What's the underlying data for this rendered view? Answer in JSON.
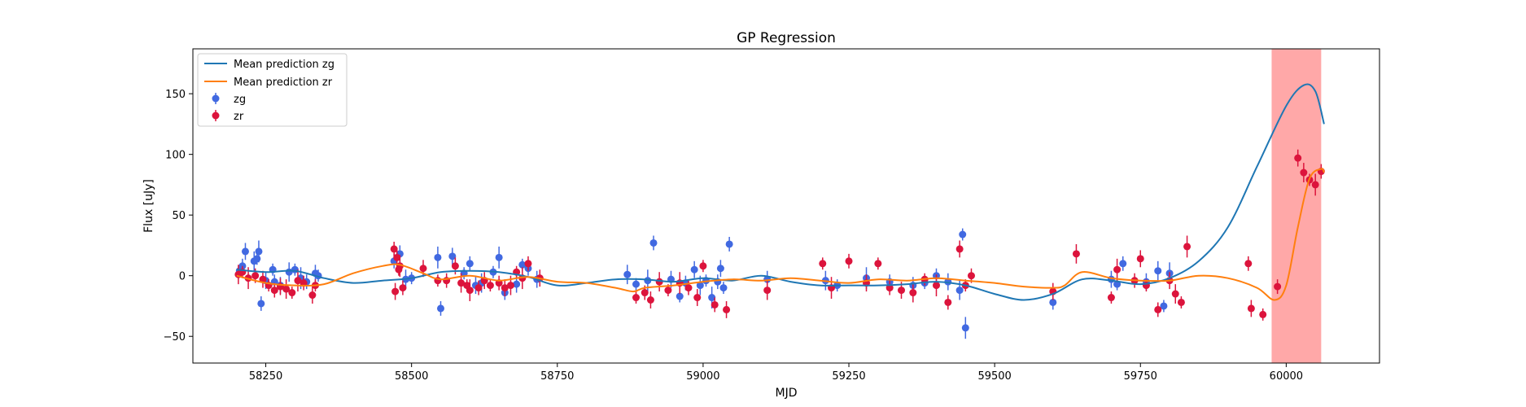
{
  "chart_data": {
    "type": "scatter",
    "title": "GP Regression",
    "xlabel": "MJD",
    "ylabel": "Flux [uJy]",
    "xlim": [
      58125,
      60160
    ],
    "ylim": [
      -72,
      187
    ],
    "x_ticks": [
      58250,
      58500,
      58750,
      59000,
      59250,
      59500,
      59750,
      60000
    ],
    "y_ticks": [
      -50,
      0,
      50,
      100,
      150
    ],
    "grid": false,
    "legend_position": "top-left",
    "shaded_region": {
      "x_start": 59975,
      "x_end": 60060,
      "color": "#ff9e9e"
    },
    "lines": [
      {
        "name": "Mean prediction zg",
        "color": "#1f77b4",
        "x": [
          58200,
          58250,
          58300,
          58350,
          58400,
          58450,
          58500,
          58550,
          58600,
          58650,
          58700,
          58750,
          58800,
          58850,
          58900,
          58950,
          59000,
          59050,
          59100,
          59150,
          59200,
          59250,
          59300,
          59350,
          59400,
          59450,
          59500,
          59550,
          59600,
          59650,
          59700,
          59750,
          59800,
          59850,
          59900,
          59950,
          60000,
          60030,
          60050,
          60065
        ],
        "y": [
          5,
          3,
          4,
          -2,
          -6,
          -4,
          -2,
          3,
          4,
          3,
          -1,
          -8,
          -6,
          -3,
          -3,
          -5,
          -2,
          -4,
          0,
          -5,
          -8,
          -8,
          -8,
          -7,
          -5,
          -8,
          -15,
          -20,
          -15,
          -3,
          -4,
          -7,
          -2,
          12,
          40,
          90,
          140,
          157,
          152,
          125
        ]
      },
      {
        "name": "Mean prediction zr",
        "color": "#ff7f0e",
        "x": [
          58200,
          58250,
          58300,
          58350,
          58400,
          58450,
          58480,
          58520,
          58550,
          58600,
          58650,
          58700,
          58750,
          58800,
          58850,
          58880,
          58900,
          58950,
          59000,
          59050,
          59100,
          59150,
          59200,
          59250,
          59300,
          59350,
          59400,
          59450,
          59500,
          59550,
          59600,
          59620,
          59650,
          59700,
          59750,
          59800,
          59850,
          59900,
          59950,
          59980,
          60000,
          60020,
          60040,
          60060,
          60065
        ],
        "y": [
          0,
          -6,
          -8,
          -7,
          2,
          8,
          9,
          2,
          -3,
          0,
          -4,
          -1,
          -5,
          -6,
          -10,
          -13,
          -10,
          -8,
          -5,
          -3,
          -4,
          -2,
          -4,
          -6,
          -3,
          -4,
          -2,
          -4,
          -6,
          -9,
          -10,
          -8,
          3,
          -2,
          -4,
          -4,
          0,
          -2,
          -10,
          -20,
          -8,
          40,
          80,
          88,
          85
        ]
      }
    ],
    "series": [
      {
        "name": "zg",
        "color": "#4169e1",
        "x": [
          58205,
          58210,
          58215,
          58230,
          58235,
          58238,
          58242,
          58250,
          58262,
          58265,
          58275,
          58290,
          58300,
          58310,
          58320,
          58335,
          58340,
          58470,
          58480,
          58490,
          58500,
          58545,
          58550,
          58570,
          58590,
          58600,
          58610,
          58620,
          58640,
          58650,
          58660,
          58680,
          58690,
          58700,
          58715,
          58870,
          58885,
          58905,
          58915,
          58945,
          58960,
          58970,
          58985,
          58995,
          59005,
          59015,
          59025,
          59030,
          59035,
          59045,
          59110,
          59210,
          59230,
          59280,
          59320,
          59360,
          59380,
          59400,
          59420,
          59440,
          59445,
          59450,
          59600,
          59700,
          59710,
          59720,
          59760,
          59780,
          59790,
          59800
        ],
        "y": [
          4,
          8,
          20,
          12,
          14,
          20,
          -23,
          -4,
          5,
          -5,
          -8,
          3,
          5,
          -2,
          -5,
          2,
          0,
          12,
          18,
          -3,
          -2,
          15,
          -27,
          16,
          2,
          10,
          -8,
          -6,
          3,
          15,
          -14,
          -7,
          9,
          6,
          -3,
          1,
          -7,
          -4,
          27,
          -3,
          -17,
          -6,
          5,
          -8,
          -4,
          -18,
          -5,
          6,
          -10,
          26,
          -3,
          -4,
          -8,
          -2,
          -5,
          -8,
          -6,
          0,
          -5,
          -12,
          34,
          -43,
          -22,
          -3,
          -7,
          10,
          -5,
          4,
          -25,
          2
        ]
      },
      {
        "name": "zr",
        "color": "#dc143c",
        "x": [
          58203,
          58210,
          58220,
          58232,
          58245,
          58255,
          58265,
          58275,
          58285,
          58295,
          58305,
          58315,
          58330,
          58335,
          58470,
          58472,
          58475,
          58478,
          58480,
          58485,
          58520,
          58545,
          58560,
          58575,
          58585,
          58595,
          58600,
          58615,
          58625,
          58635,
          58650,
          58660,
          58670,
          58680,
          58690,
          58700,
          58720,
          58885,
          58900,
          58910,
          58925,
          58940,
          58960,
          58975,
          58990,
          59000,
          59020,
          59040,
          59110,
          59205,
          59220,
          59250,
          59280,
          59300,
          59320,
          59340,
          59360,
          59380,
          59400,
          59420,
          59440,
          59450,
          59460,
          59600,
          59640,
          59700,
          59710,
          59740,
          59750,
          59760,
          59780,
          59800,
          59810,
          59820,
          59830,
          59935,
          59940,
          59960,
          59985,
          60020,
          60030,
          60040,
          60050,
          60060
        ],
        "y": [
          1,
          3,
          -2,
          0,
          -3,
          -8,
          -12,
          -9,
          -11,
          -14,
          -4,
          -6,
          -16,
          -8,
          22,
          -13,
          15,
          5,
          8,
          -10,
          6,
          -4,
          -4,
          8,
          -6,
          -8,
          -12,
          -10,
          -4,
          -8,
          -6,
          -10,
          -8,
          3,
          -2,
          10,
          -2,
          -18,
          -14,
          -20,
          -5,
          -12,
          -6,
          -10,
          -18,
          8,
          -24,
          -28,
          -12,
          10,
          -10,
          12,
          -6,
          10,
          -10,
          -12,
          -14,
          -3,
          -8,
          -22,
          22,
          -8,
          0,
          -13,
          18,
          -18,
          5,
          -4,
          14,
          -8,
          -28,
          -4,
          -15,
          -22,
          24,
          10,
          -27,
          -32,
          -9,
          97,
          85,
          79,
          75,
          86
        ]
      }
    ]
  }
}
